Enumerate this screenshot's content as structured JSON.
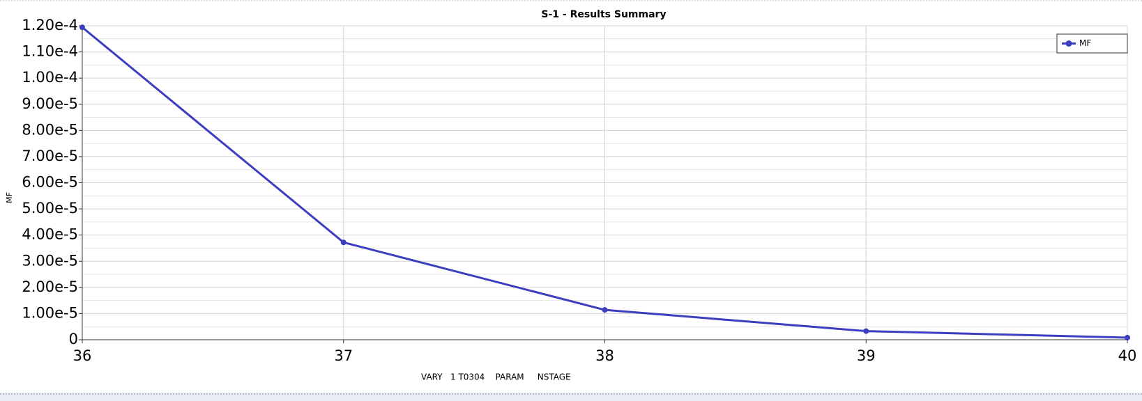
{
  "chart_data": {
    "type": "line",
    "title": "S-1 - Results Summary",
    "x_label": "VARY   1 T0304    PARAM     NSTAGE",
    "y_label": "MF",
    "x": [
      36,
      37,
      38,
      39,
      40
    ],
    "series": [
      {
        "name": "MF",
        "color": "#3d3dbf",
        "values": [
          0.0001194,
          3.72e-05,
          1.14e-05,
          3.3e-06,
          8e-07
        ]
      }
    ],
    "xlim": [
      36,
      40
    ],
    "xticks": [
      36,
      37,
      38,
      39,
      40
    ],
    "ylim": [
      0,
      0.00012
    ],
    "yticks": [
      0,
      {
        "value": 1e-05,
        "label": "1.00e-5"
      },
      {
        "value": 2e-05,
        "label": "2.00e-5"
      },
      {
        "value": 3e-05,
        "label": "3.00e-5"
      },
      {
        "value": 4e-05,
        "label": "4.00e-5"
      },
      {
        "value": 5e-05,
        "label": "5.00e-5"
      },
      {
        "value": 6e-05,
        "label": "6.00e-5"
      },
      {
        "value": 7e-05,
        "label": "7.00e-5"
      },
      {
        "value": 8e-05,
        "label": "8.00e-5"
      },
      {
        "value": 9e-05,
        "label": "9.00e-5"
      },
      {
        "value": 0.0001,
        "label": "1.00e-4"
      },
      {
        "value": 0.00011,
        "label": "1.10e-4"
      },
      {
        "value": 0.00012,
        "label": "1.20e-4"
      }
    ],
    "minor_yticks": [
      5e-06,
      1.5e-05,
      2.5e-05,
      3.5e-05,
      4.5e-05,
      5.5e-05,
      6.5e-05,
      7.5e-05,
      8.5e-05,
      9.5e-05,
      0.000105,
      0.000115
    ],
    "grid": true,
    "legend": "upper right"
  }
}
